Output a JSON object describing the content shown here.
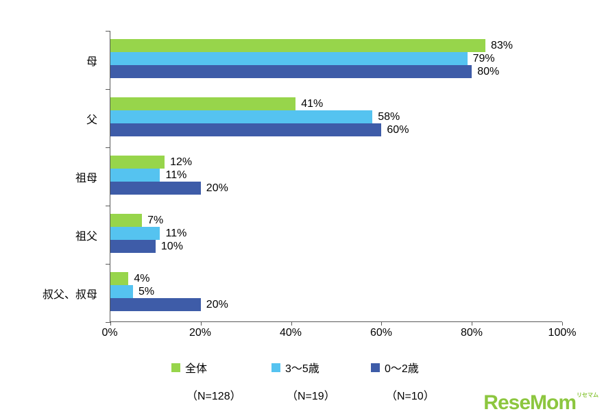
{
  "chart_data": {
    "type": "bar",
    "orientation": "horizontal",
    "title": "",
    "categories": [
      "母",
      "父",
      "祖母",
      "祖父",
      "叔父、叔母"
    ],
    "series": [
      {
        "name": "全体",
        "n_label": "（N=128）",
        "color": "#97d54b",
        "values": [
          83,
          41,
          12,
          7,
          4
        ]
      },
      {
        "name": "3〜5歳",
        "n_label": "（N=19）",
        "color": "#55c3f0",
        "values": [
          79,
          58,
          11,
          11,
          5
        ]
      },
      {
        "name": "0〜2歳",
        "n_label": "（N=10）",
        "color": "#3e5ca8",
        "values": [
          80,
          60,
          20,
          10,
          20
        ]
      }
    ],
    "xlim": [
      0,
      100
    ],
    "x_ticks": [
      "0%",
      "20%",
      "40%",
      "60%",
      "80%",
      "100%"
    ],
    "value_suffix": "%",
    "legend_position": "bottom",
    "grid": false,
    "axis_color": "#595959"
  },
  "logo": {
    "text": "ReseMom",
    "subtext": "リセマム",
    "color": "#8cc63f"
  }
}
